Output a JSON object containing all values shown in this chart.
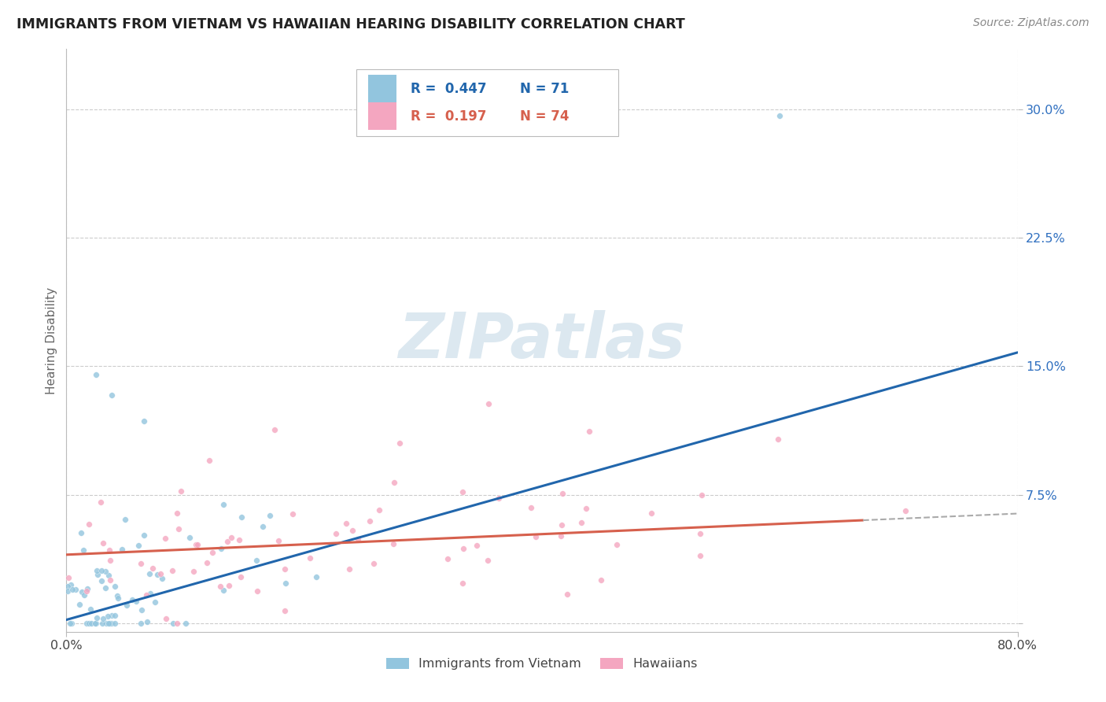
{
  "title": "IMMIGRANTS FROM VIETNAM VS HAWAIIAN HEARING DISABILITY CORRELATION CHART",
  "source": "Source: ZipAtlas.com",
  "ylabel": "Hearing Disability",
  "y_tick_vals": [
    0.0,
    0.075,
    0.15,
    0.225,
    0.3
  ],
  "y_tick_labels": [
    "",
    "7.5%",
    "15.0%",
    "22.5%",
    "30.0%"
  ],
  "x_range": [
    0.0,
    0.8
  ],
  "y_range": [
    -0.005,
    0.335
  ],
  "legend_r1": "0.447",
  "legend_n1": "71",
  "legend_r2": "0.197",
  "legend_n2": "74",
  "blue_color": "#92c5de",
  "pink_color": "#f4a6c0",
  "blue_line_color": "#2166ac",
  "pink_line_color": "#d6604d",
  "grid_color": "#cccccc",
  "watermark_color": "#dce8f0"
}
